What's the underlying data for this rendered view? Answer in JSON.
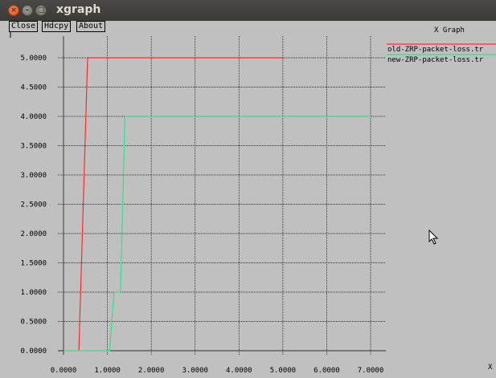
{
  "window": {
    "title": "xgraph"
  },
  "toolbar": {
    "close_label": "Close",
    "hdcpy_label": "Hdcpy",
    "about_label": "About"
  },
  "graph": {
    "title": "X Graph",
    "x_unit": "X"
  },
  "colors": {
    "old_series": "#ff2a2a",
    "new_series": "#33e08a",
    "plot_bg": "#c0c0c0"
  },
  "chart_data": {
    "type": "line",
    "title": "X Graph",
    "xlabel": "X",
    "ylabel": "",
    "xlim": [
      0,
      7
    ],
    "ylim": [
      0,
      5
    ],
    "grid": true,
    "legend": "top-right",
    "x_ticks": [
      "0.0000",
      "1.0000",
      "2.0000",
      "3.0000",
      "4.0000",
      "5.0000",
      "6.0000",
      "7.0000"
    ],
    "y_ticks": [
      "0.0000",
      "0.5000",
      "1.0000",
      "1.5000",
      "2.0000",
      "2.5000",
      "3.0000",
      "3.5000",
      "4.0000",
      "4.5000",
      "5.0000"
    ],
    "series": [
      {
        "name": "old-ZRP-packet-loss.tr",
        "color": "#ff2a2a",
        "points": [
          [
            0.35,
            0
          ],
          [
            0.55,
            5
          ],
          [
            5.0,
            5
          ]
        ]
      },
      {
        "name": "new-ZRP-packet-loss.tr",
        "color": "#33e08a",
        "points": [
          [
            0,
            0
          ],
          [
            1.05,
            0
          ],
          [
            1.15,
            1
          ],
          [
            1.3,
            1
          ],
          [
            1.4,
            4
          ],
          [
            7.0,
            4
          ]
        ]
      }
    ]
  }
}
